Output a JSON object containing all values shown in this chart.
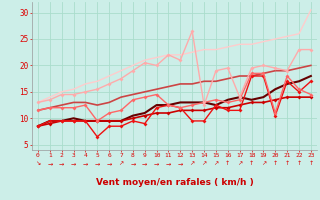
{
  "xlabel": "Vent moyen/en rafales ( km/h )",
  "background_color": "#cceee8",
  "grid_color": "#aaddcc",
  "x_values": [
    0,
    1,
    2,
    3,
    4,
    5,
    6,
    7,
    8,
    9,
    10,
    11,
    12,
    13,
    14,
    15,
    16,
    17,
    18,
    19,
    20,
    21,
    22,
    23
  ],
  "lines": [
    {
      "y": [
        8.5,
        9.0,
        9.5,
        9.5,
        9.5,
        9.5,
        9.5,
        9.5,
        10.0,
        10.5,
        11.0,
        11.0,
        11.5,
        11.5,
        11.5,
        12.0,
        12.0,
        12.5,
        13.0,
        13.0,
        13.5,
        14.0,
        14.0,
        14.0
      ],
      "color": "#cc0000",
      "lw": 1.2,
      "marker": "D",
      "ms": 2.0
    },
    {
      "y": [
        8.5,
        9.5,
        9.5,
        9.5,
        9.5,
        6.5,
        8.5,
        8.5,
        9.5,
        9.0,
        12.0,
        12.5,
        12.0,
        9.5,
        9.5,
        12.5,
        11.5,
        11.5,
        18.0,
        18.0,
        10.5,
        17.0,
        15.0,
        17.0
      ],
      "color": "#ee1111",
      "lw": 1.0,
      "marker": "D",
      "ms": 2.0
    },
    {
      "y": [
        8.5,
        9.5,
        9.5,
        10.0,
        9.5,
        9.5,
        9.5,
        9.5,
        10.5,
        11.0,
        12.5,
        12.5,
        13.0,
        13.0,
        13.0,
        12.5,
        13.5,
        14.0,
        13.5,
        14.0,
        15.5,
        16.5,
        17.0,
        18.0
      ],
      "color": "#660000",
      "lw": 1.5,
      "marker": null,
      "ms": 0
    },
    {
      "y": [
        11.5,
        12.0,
        12.0,
        12.0,
        12.5,
        9.5,
        11.0,
        11.5,
        13.5,
        14.0,
        14.5,
        12.5,
        12.0,
        12.5,
        13.0,
        13.5,
        13.0,
        13.5,
        18.5,
        18.5,
        11.0,
        18.0,
        15.5,
        14.5
      ],
      "color": "#ff6666",
      "lw": 1.0,
      "marker": "D",
      "ms": 2.0
    },
    {
      "y": [
        11.5,
        12.0,
        12.5,
        13.0,
        13.0,
        12.5,
        13.0,
        14.0,
        14.5,
        15.0,
        15.5,
        16.0,
        16.5,
        16.5,
        17.0,
        17.0,
        17.5,
        18.0,
        18.0,
        18.5,
        19.0,
        19.0,
        19.5,
        20.0
      ],
      "color": "#cc4444",
      "lw": 1.2,
      "marker": null,
      "ms": 0
    },
    {
      "y": [
        13.0,
        13.5,
        14.5,
        14.5,
        15.0,
        15.5,
        16.5,
        17.5,
        19.0,
        20.5,
        20.0,
        22.0,
        21.0,
        26.5,
        12.5,
        19.0,
        19.5,
        14.0,
        19.5,
        20.0,
        19.5,
        19.0,
        23.0,
        23.0
      ],
      "color": "#ffaaaa",
      "lw": 1.0,
      "marker": "D",
      "ms": 2.0
    },
    {
      "y": [
        13.0,
        14.0,
        15.0,
        15.5,
        16.5,
        17.0,
        18.0,
        19.0,
        20.0,
        21.0,
        21.5,
        22.0,
        22.0,
        22.5,
        23.0,
        23.0,
        23.5,
        24.0,
        24.0,
        24.5,
        25.0,
        25.5,
        26.0,
        30.5
      ],
      "color": "#ffcccc",
      "lw": 1.0,
      "marker": null,
      "ms": 0
    }
  ],
  "ylim": [
    4,
    32
  ],
  "yticks": [
    5,
    10,
    15,
    20,
    25,
    30
  ],
  "xticks": [
    0,
    1,
    2,
    3,
    4,
    5,
    6,
    7,
    8,
    9,
    10,
    11,
    12,
    13,
    14,
    15,
    16,
    17,
    18,
    19,
    20,
    21,
    22,
    23
  ],
  "tick_color": "#dd0000",
  "label_color": "#cc0000",
  "arrows": [
    "↘",
    "→",
    "→",
    "→",
    "→",
    "→",
    "→",
    "↗",
    "→",
    "→",
    "→",
    "→",
    "→",
    "↗",
    "↗",
    "↗",
    "↑",
    "↗",
    "↑",
    "↗",
    "↑",
    "↑",
    "↑",
    "↑"
  ]
}
